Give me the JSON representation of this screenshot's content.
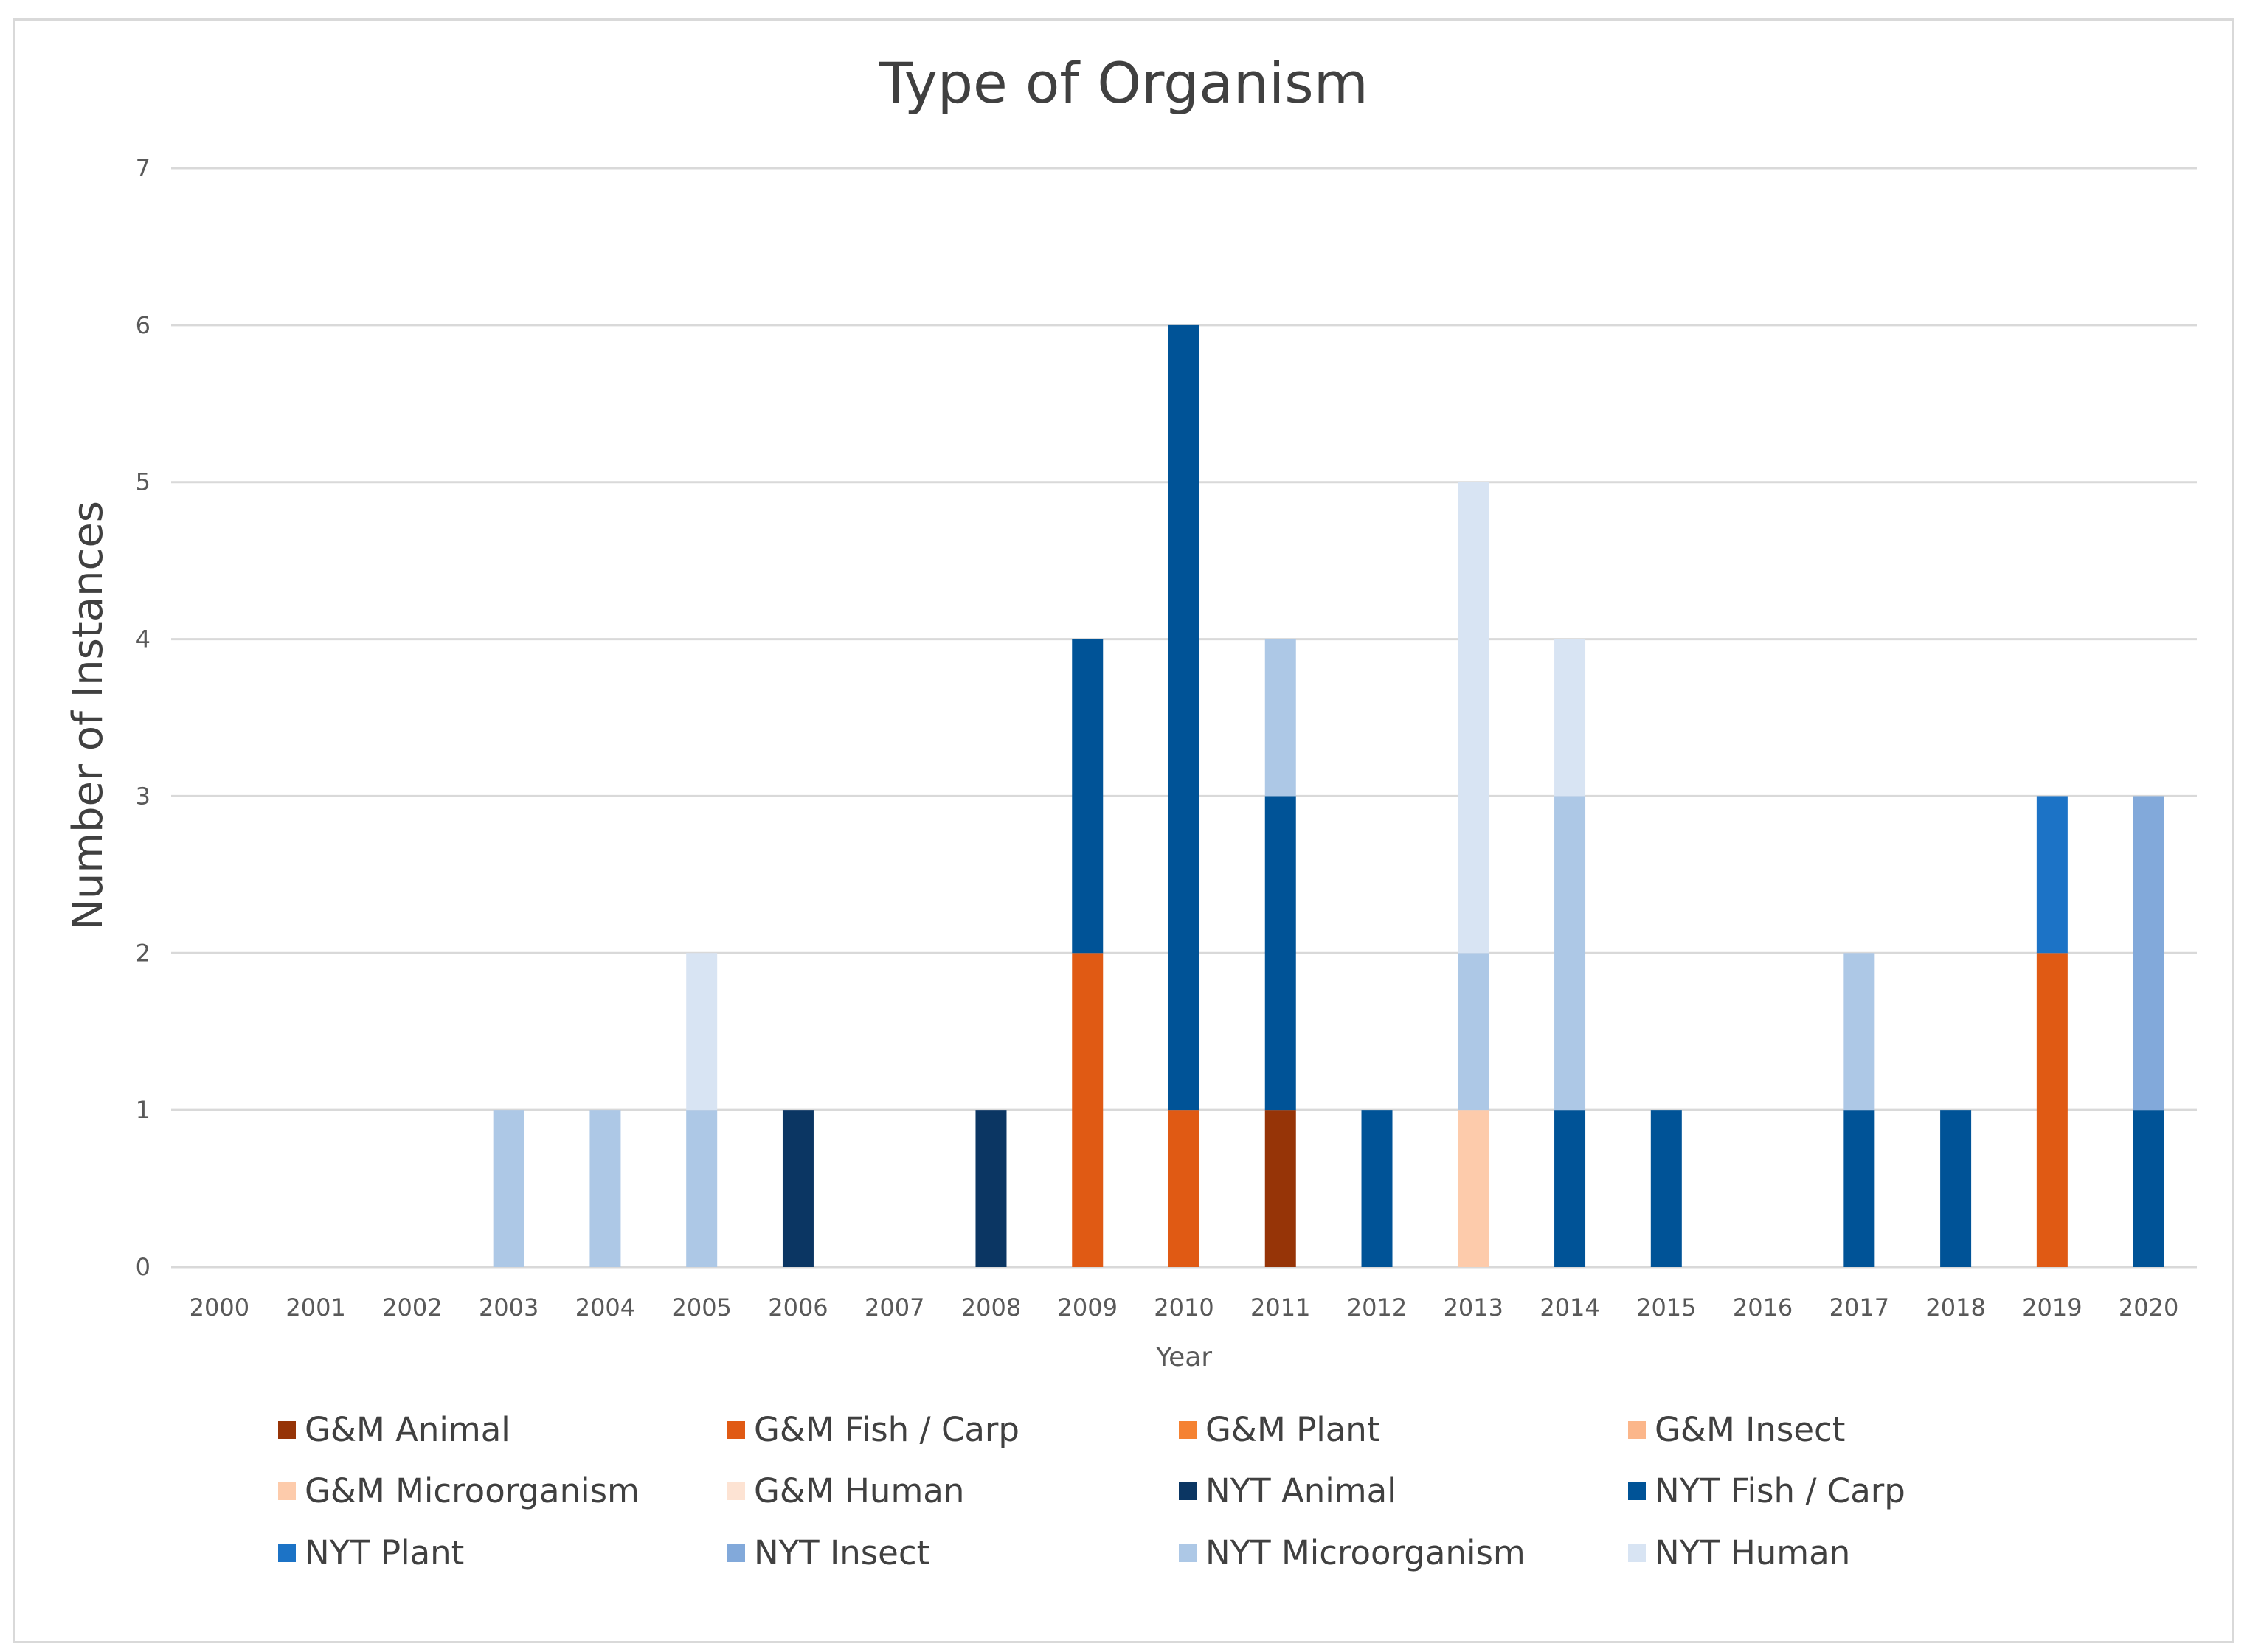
{
  "chart_data": {
    "type": "bar",
    "stacked": true,
    "title": "Type of Organism",
    "xlabel": "Year",
    "ylabel": "Number of Instances",
    "ylim": [
      0,
      7
    ],
    "yticks": [
      "0",
      "1",
      "2",
      "3",
      "4",
      "5",
      "6",
      "7"
    ],
    "grid": true,
    "legend_position": "bottom",
    "categories": [
      "2000",
      "2001",
      "2002",
      "2003",
      "2004",
      "2005",
      "2006",
      "2007",
      "2008",
      "2009",
      "2010",
      "2011",
      "2012",
      "2013",
      "2014",
      "2015",
      "2016",
      "2017",
      "2018",
      "2019",
      "2020"
    ],
    "series": [
      {
        "name": "G&M Animal",
        "color": "#963407",
        "values": [
          0,
          0,
          0,
          0,
          0,
          0,
          0,
          0,
          0,
          0,
          0,
          1,
          0,
          0,
          0,
          0,
          0,
          0,
          0,
          0,
          0
        ]
      },
      {
        "name": "G&M Fish / Carp",
        "color": "#e05a14",
        "values": [
          0,
          0,
          0,
          0,
          0,
          0,
          0,
          0,
          0,
          2,
          1,
          0,
          0,
          0,
          0,
          0,
          0,
          0,
          0,
          2,
          0
        ]
      },
      {
        "name": "G&M Plant",
        "color": "#f58232",
        "values": [
          0,
          0,
          0,
          0,
          0,
          0,
          0,
          0,
          0,
          0,
          0,
          0,
          0,
          0,
          0,
          0,
          0,
          0,
          0,
          0,
          0
        ]
      },
      {
        "name": "G&M Insect",
        "color": "#fbb68a",
        "values": [
          0,
          0,
          0,
          0,
          0,
          0,
          0,
          0,
          0,
          0,
          0,
          0,
          0,
          0,
          0,
          0,
          0,
          0,
          0,
          0,
          0
        ]
      },
      {
        "name": "G&M Microorganism",
        "color": "#fdcbab",
        "values": [
          0,
          0,
          0,
          0,
          0,
          0,
          0,
          0,
          0,
          0,
          0,
          0,
          0,
          1,
          0,
          0,
          0,
          0,
          0,
          0,
          0
        ]
      },
      {
        "name": "G&M Human",
        "color": "#fde3d3",
        "values": [
          0,
          0,
          0,
          0,
          0,
          0,
          0,
          0,
          0,
          0,
          0,
          0,
          0,
          0,
          0,
          0,
          0,
          0,
          0,
          0,
          0
        ]
      },
      {
        "name": "NYT Animal",
        "color": "#0b3663",
        "values": [
          0,
          0,
          0,
          0,
          0,
          0,
          1,
          0,
          1,
          0,
          0,
          0,
          0,
          0,
          0,
          0,
          0,
          0,
          0,
          0,
          0
        ]
      },
      {
        "name": "NYT Fish / Carp",
        "color": "#005397",
        "values": [
          0,
          0,
          0,
          0,
          0,
          0,
          0,
          0,
          0,
          2,
          5,
          2,
          1,
          0,
          1,
          1,
          0,
          1,
          1,
          0,
          1
        ]
      },
      {
        "name": "NYT Plant",
        "color": "#1c73c6",
        "values": [
          0,
          0,
          0,
          0,
          0,
          0,
          0,
          0,
          0,
          0,
          0,
          0,
          0,
          0,
          0,
          0,
          0,
          0,
          0,
          1,
          0
        ]
      },
      {
        "name": "NYT Insect",
        "color": "#82a9da",
        "values": [
          0,
          0,
          0,
          0,
          0,
          0,
          0,
          0,
          0,
          0,
          0,
          0,
          0,
          0,
          0,
          0,
          0,
          0,
          0,
          0,
          2
        ]
      },
      {
        "name": "NYT Microorganism",
        "color": "#adc8e6",
        "values": [
          0,
          0,
          0,
          1,
          1,
          1,
          0,
          0,
          0,
          0,
          0,
          1,
          0,
          1,
          2,
          0,
          0,
          1,
          0,
          0,
          0
        ]
      },
      {
        "name": "NYT Human",
        "color": "#d8e4f3",
        "values": [
          0,
          0,
          0,
          0,
          0,
          1,
          0,
          0,
          0,
          0,
          0,
          0,
          0,
          3,
          1,
          0,
          0,
          0,
          0,
          0,
          0
        ]
      }
    ]
  }
}
